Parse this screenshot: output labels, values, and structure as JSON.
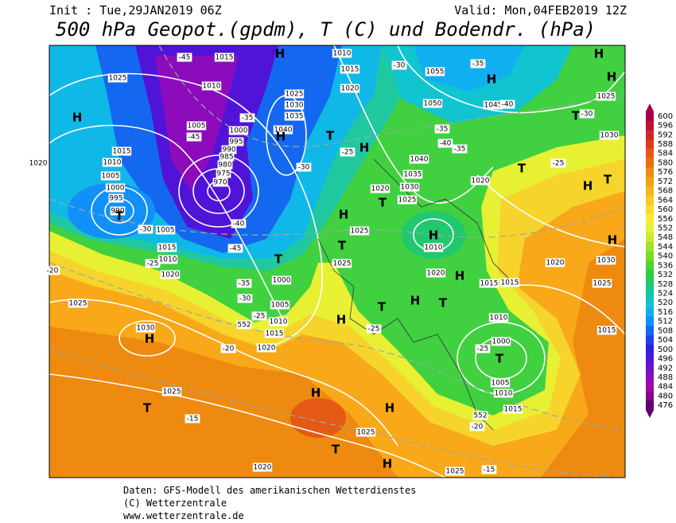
{
  "header": {
    "init": "Init : Tue,29JAN2019 06Z",
    "valid": "Valid: Mon,04FEB2019 12Z",
    "title": "500 hPa Geopot.(gpdm), T (C) und Bodendr. (hPa)"
  },
  "map": {
    "labels": [
      "-45",
      "1015",
      "H",
      "1010",
      "1015",
      "1025",
      "H",
      "1010",
      "1020",
      "1025",
      "1030",
      "1035",
      "1040",
      "1005",
      "1000",
      "995",
      "990",
      "985",
      "980",
      "975",
      "970",
      "H",
      "T",
      "H",
      "1015",
      "1010",
      "1005",
      "1000",
      "995",
      "990",
      "1020",
      "T",
      "1005",
      "1015",
      "1010",
      "1020",
      "T",
      "1000",
      "1005",
      "1010",
      "1015",
      "1020",
      "1025",
      "1030",
      "H",
      "1025",
      "T",
      "H",
      "H",
      "1025",
      "T",
      "H",
      "1020",
      "1025",
      "1055",
      "H",
      "1050",
      "1045",
      "T",
      "1030",
      "H",
      "H",
      "1025",
      "T",
      "H",
      "T",
      "H",
      "1030",
      "1025",
      "1015",
      "1020",
      "1015",
      "1010",
      "1000",
      "T",
      "1005",
      "1010",
      "1015",
      "1020",
      "1040",
      "1035",
      "1030",
      "1025",
      "1020",
      "T",
      "H",
      "1010",
      "H",
      "1025",
      "T",
      "1025",
      "1020",
      "H",
      "1015",
      "H",
      "T",
      "T",
      "H",
      "-25",
      "-15",
      "-20",
      "-25",
      "-20",
      "-15",
      "-25",
      "-30",
      "-35",
      "-40",
      "-45",
      "-30",
      "-25",
      "-20",
      "-25",
      "-30",
      "-35",
      "-40",
      "-40",
      "-35",
      "-30",
      "-25",
      "-30",
      "-35",
      "-45",
      "-35",
      "552",
      "552"
    ]
  },
  "color_scale": {
    "values": [
      600,
      596,
      592,
      588,
      584,
      580,
      576,
      572,
      568,
      564,
      560,
      556,
      552,
      548,
      544,
      540,
      536,
      532,
      528,
      524,
      520,
      516,
      512,
      508,
      504,
      500,
      496,
      492,
      488,
      484,
      480,
      476
    ],
    "colors": [
      "#a8004a",
      "#c0103a",
      "#d02828",
      "#dc3c1c",
      "#e45a14",
      "#e87010",
      "#ee8a10",
      "#f2a014",
      "#f6b41c",
      "#f8c828",
      "#fadc30",
      "#f8ec34",
      "#e8f034",
      "#c8ec2c",
      "#a0e428",
      "#78dc28",
      "#50d430",
      "#30cc40",
      "#20c870",
      "#10c8a0",
      "#10c4d0",
      "#10b0f0",
      "#1090f8",
      "#1468f0",
      "#1e44e8",
      "#3020e0",
      "#5014d8",
      "#7010cc",
      "#8c0cbc",
      "#a008a8",
      "#880090",
      "#600070"
    ]
  },
  "footer": {
    "lines": [
      "Daten: GFS-Modell des amerikanischen Wetterdienstes",
      "(C) Wetterzentrale",
      "www.wetterzentrale.de"
    ]
  }
}
